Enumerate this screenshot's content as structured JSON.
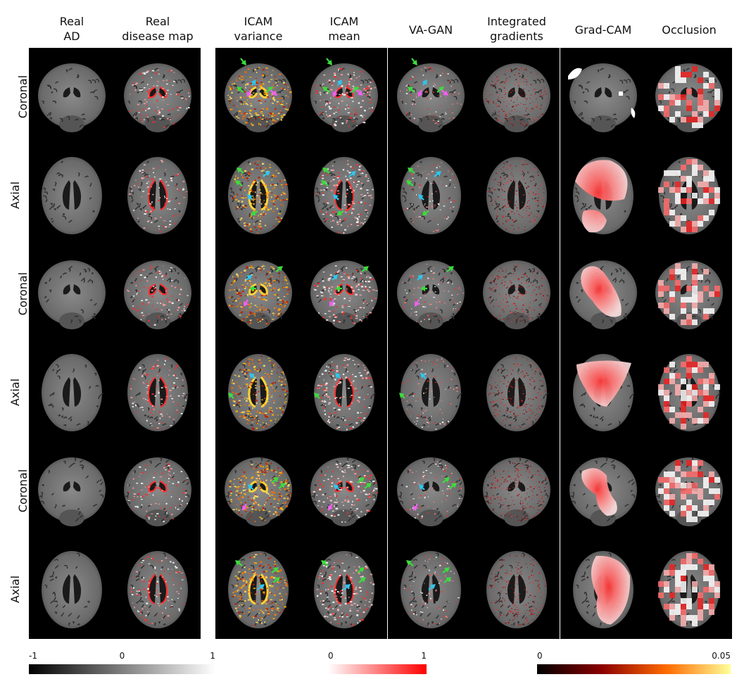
{
  "column_titles": [
    "Real\nAD",
    "Real\ndisease map",
    "ICAM\nvariance",
    "ICAM\nmean",
    "VA-GAN",
    "Integrated\ngradients",
    "Grad-CAM",
    "Occlusion"
  ],
  "row_labels": [
    "Coronal",
    "Axial",
    "Coronal",
    "Axial",
    "Coronal",
    "Axial"
  ],
  "colorbars": [
    {
      "name": "grayscale",
      "ticks": [
        "-1",
        "0",
        "1"
      ],
      "gradient": [
        "#000000",
        "#7f7f7f",
        "#ffffff"
      ]
    },
    {
      "name": "red",
      "ticks": [
        "0",
        "1"
      ],
      "gradient": [
        "#ffffff",
        "#ff0000"
      ]
    },
    {
      "name": "hot",
      "ticks": [
        "0",
        "0.05"
      ],
      "gradient": [
        "#000000",
        "#8b0000",
        "#ff6a00",
        "#ffff9a"
      ]
    }
  ],
  "arrow_colors": {
    "green": "#3ddc3d",
    "cyan": "#2ec7f0",
    "magenta": "#f060f0"
  }
}
